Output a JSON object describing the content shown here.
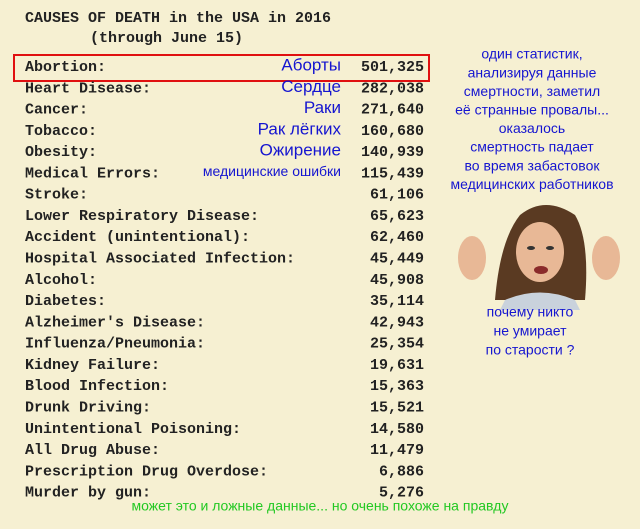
{
  "title": [
    "CAUSES OF DEATH in the USA in 2016",
    "(through June 15)"
  ],
  "table": {
    "rows": [
      [
        "Abortion:",
        "501,325"
      ],
      [
        "Heart Disease:",
        "282,038"
      ],
      [
        "Cancer:",
        "271,640"
      ],
      [
        "Tobacco:",
        "160,680"
      ],
      [
        "Obesity:",
        "140,939"
      ],
      [
        "Medical Errors:",
        "115,439"
      ],
      [
        "Stroke:",
        "61,106"
      ],
      [
        "Lower Respiratory Disease:",
        "65,623"
      ],
      [
        "Accident (unintentional):",
        "62,460"
      ],
      [
        "Hospital Associated Infection:",
        "45,449"
      ],
      [
        "Alcohol:",
        "45,908"
      ],
      [
        "Diabetes:",
        "35,114"
      ],
      [
        "Alzheimer's Disease:",
        "42,943"
      ],
      [
        "Influenza/Pneumonia:",
        "25,354"
      ],
      [
        "Kidney Failure:",
        "19,631"
      ],
      [
        "Blood Infection:",
        "15,363"
      ],
      [
        "Drunk Driving:",
        "15,521"
      ],
      [
        "Unintentional Poisoning:",
        "14,580"
      ],
      [
        "All Drug Abuse:",
        "11,479"
      ],
      [
        "Prescription Drug Overdose:",
        "6,886"
      ],
      [
        "Murder by gun:",
        "5,276"
      ]
    ]
  },
  "annotations": [
    "Аборты",
    "Сердце",
    "Раки",
    "Рак лёгких",
    "Ожирение",
    "медицинские ошибки"
  ],
  "comment": [
    "один статистик,",
    "анализируя данные",
    "смертности, заметил",
    "её странные провалы...",
    "оказалось",
    "смертность падает",
    "во время забастовок",
    "медицинских работников"
  ],
  "question": [
    "почему никто",
    "не умирает",
    "по старости ?"
  ],
  "footer": "может это и ложные данные... но очень похоже на правду"
}
